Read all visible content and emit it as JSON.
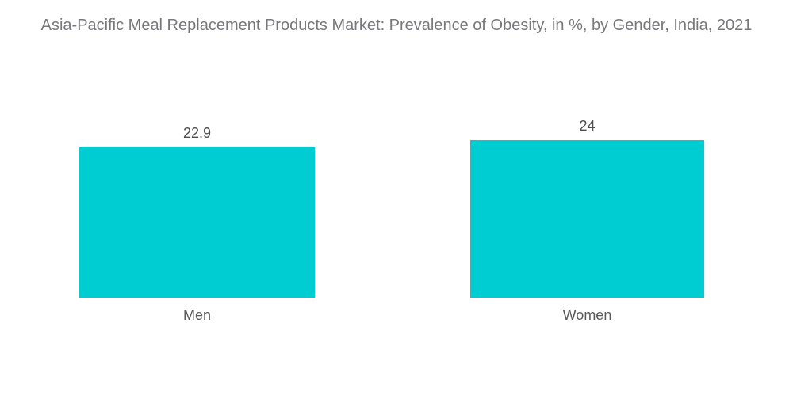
{
  "chart_data": {
    "type": "bar",
    "title": "Asia-Pacific Meal Replacement Products Market: Prevalence of Obesity, in %, by Gender, India, 2021",
    "categories": [
      "Men",
      "Women"
    ],
    "values": [
      22.9,
      24
    ],
    "value_labels": [
      "22.9",
      "24"
    ],
    "xlabel": "",
    "ylabel": "",
    "ylim": [
      0,
      25
    ],
    "grid": false,
    "legend": false,
    "axes_visible": false
  },
  "colors": {
    "bar": "#00cdd2",
    "title_text": "#77787b",
    "value_text": "#4d4d4f",
    "category_text": "#58595b",
    "background": "#ffffff"
  }
}
